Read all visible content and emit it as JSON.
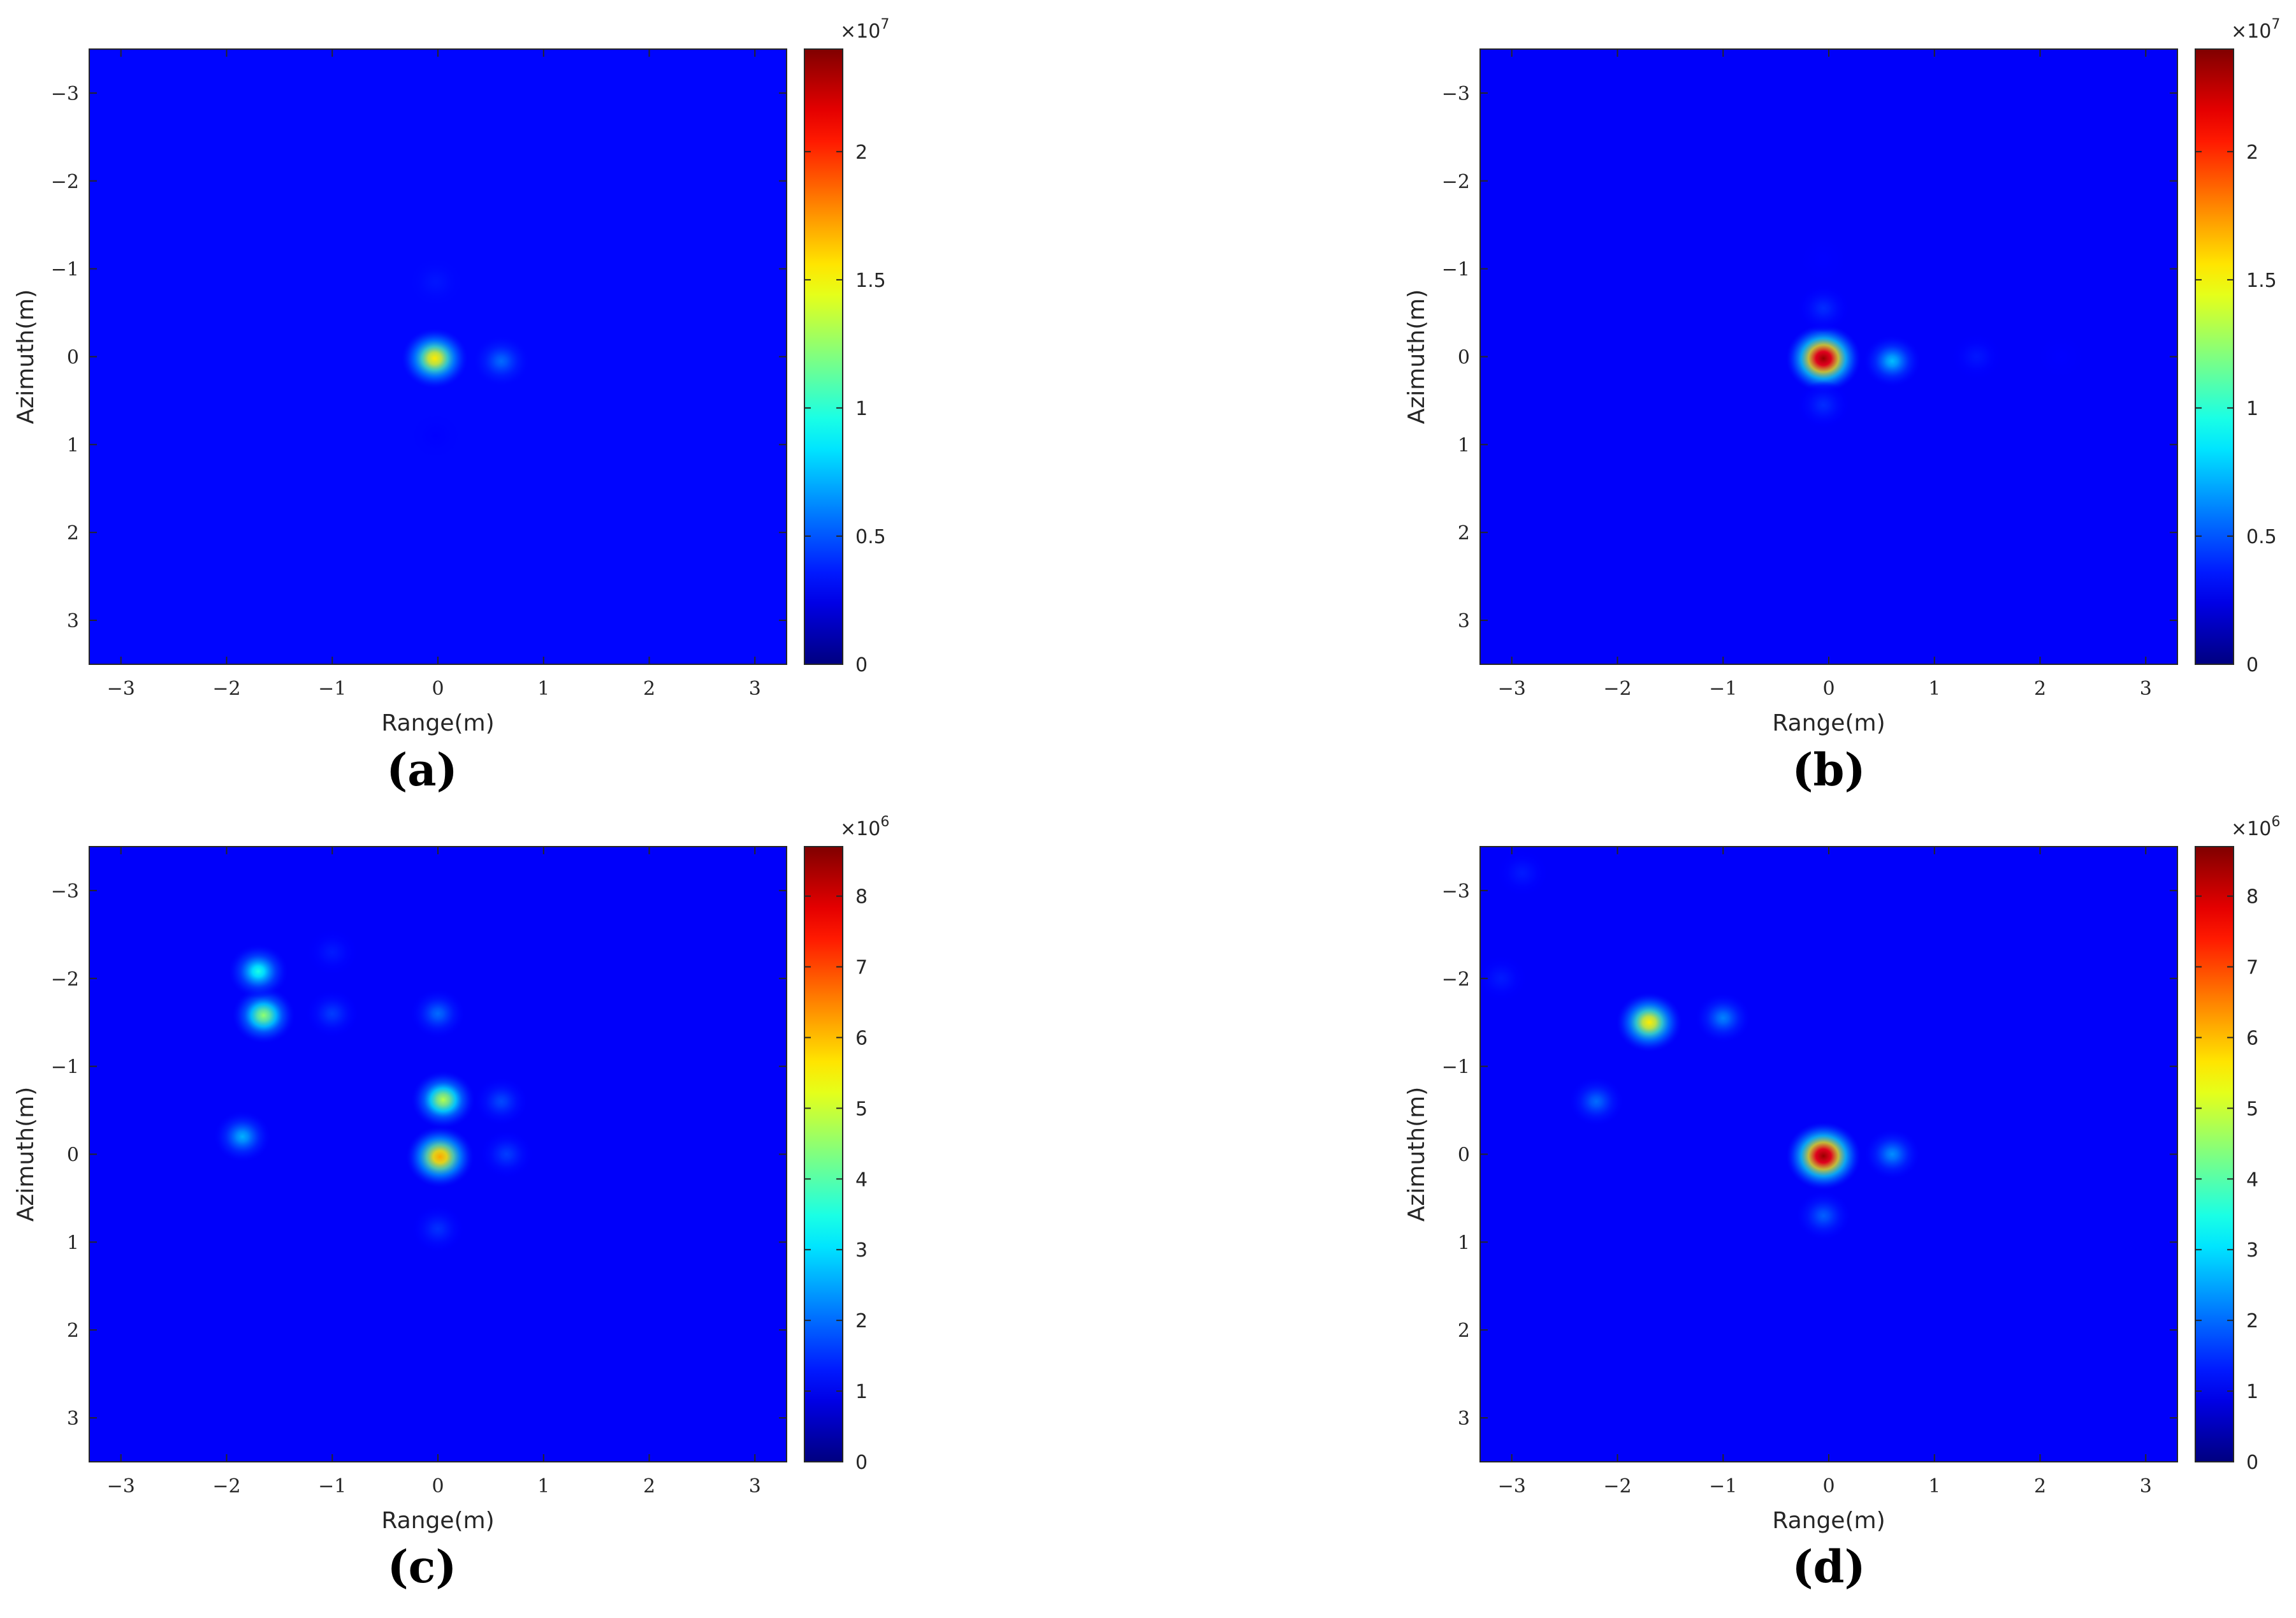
{
  "chart_data": [
    {
      "type": "heatmap",
      "caption": "(a)",
      "xlabel": "Range(m)",
      "ylabel": "Azimuth(m)",
      "xlim": [
        -3.3,
        3.3
      ],
      "ylim": [
        3.5,
        -3.5
      ],
      "xticks": [
        -3,
        -2,
        -1,
        0,
        1,
        2,
        3
      ],
      "yticks": [
        -3,
        -2,
        -1,
        0,
        1,
        2,
        3
      ],
      "colormap": "jet",
      "colorbar": {
        "min": 0,
        "max": 2.4,
        "ticks": [
          0,
          0.5,
          1,
          1.5,
          2
        ],
        "tick_labels": [
          "0",
          "0.5",
          "1",
          "1.5",
          "2"
        ],
        "exponent_label": "×10",
        "exponent": "7"
      },
      "background_level": 0.13,
      "peaks": [
        {
          "x": -0.03,
          "y": 0.02,
          "value": 1.55
        },
        {
          "x": 0.6,
          "y": 0.05,
          "value": 0.55
        },
        {
          "x": -0.02,
          "y": -0.85,
          "value": 0.35
        },
        {
          "x": -0.02,
          "y": 0.9,
          "value": 0.3
        }
      ]
    },
    {
      "type": "heatmap",
      "caption": "(b)",
      "xlabel": "Range(m)",
      "ylabel": "Azimuth(m)",
      "xlim": [
        -3.3,
        3.3
      ],
      "ylim": [
        3.5,
        -3.5
      ],
      "xticks": [
        -3,
        -2,
        -1,
        0,
        1,
        2,
        3
      ],
      "yticks": [
        -3,
        -2,
        -1,
        0,
        1,
        2,
        3
      ],
      "colormap": "jet",
      "colorbar": {
        "min": 0,
        "max": 2.4,
        "ticks": [
          0,
          0.5,
          1,
          1.5,
          2
        ],
        "tick_labels": [
          "0",
          "0.5",
          "1",
          "1.5",
          "2"
        ],
        "exponent_label": "×10",
        "exponent": "7"
      },
      "background_level": 0.12,
      "peaks": [
        {
          "x": -0.05,
          "y": 0.02,
          "value": 2.35
        },
        {
          "x": 0.6,
          "y": 0.05,
          "value": 0.75
        },
        {
          "x": 1.4,
          "y": 0.0,
          "value": 0.35
        },
        {
          "x": 2.2,
          "y": 0.0,
          "value": 0.3
        },
        {
          "x": -0.05,
          "y": -0.55,
          "value": 0.4
        },
        {
          "x": -0.05,
          "y": 0.55,
          "value": 0.4
        },
        {
          "x": -0.05,
          "y": -1.1,
          "value": 0.3
        }
      ]
    },
    {
      "type": "heatmap",
      "caption": "(c)",
      "xlabel": "Range(m)",
      "ylabel": "Azimuth(m)",
      "xlim": [
        -3.3,
        3.3
      ],
      "ylim": [
        3.5,
        -3.5
      ],
      "xticks": [
        -3,
        -2,
        -1,
        0,
        1,
        2,
        3
      ],
      "yticks": [
        -3,
        -2,
        -1,
        0,
        1,
        2,
        3
      ],
      "colormap": "jet",
      "colorbar": {
        "min": 0,
        "max": 8.7,
        "ticks": [
          0,
          1,
          2,
          3,
          4,
          5,
          6,
          7,
          8
        ],
        "tick_labels": [
          "0",
          "1",
          "2",
          "3",
          "4",
          "5",
          "6",
          "7",
          "8"
        ],
        "exponent_label": "×10",
        "exponent": "6"
      },
      "background_level": 0.12,
      "peaks": [
        {
          "x": 0.02,
          "y": 0.03,
          "value": 6.2
        },
        {
          "x": 0.05,
          "y": -0.62,
          "value": 4.8
        },
        {
          "x": -1.65,
          "y": -1.58,
          "value": 4.5
        },
        {
          "x": -1.7,
          "y": -2.08,
          "value": 3.5
        },
        {
          "x": -1.85,
          "y": -0.2,
          "value": 2.6
        },
        {
          "x": 0.6,
          "y": -0.6,
          "value": 1.7
        },
        {
          "x": 0.65,
          "y": 0.0,
          "value": 1.6
        },
        {
          "x": -1.0,
          "y": -1.6,
          "value": 1.6
        },
        {
          "x": -1.0,
          "y": -2.3,
          "value": 1.3
        },
        {
          "x": 0.0,
          "y": -1.6,
          "value": 2.0
        },
        {
          "x": 0.0,
          "y": 0.85,
          "value": 1.5
        }
      ]
    },
    {
      "type": "heatmap",
      "caption": "(d)",
      "xlabel": "Range(m)",
      "ylabel": "Azimuth(m)",
      "xlim": [
        -3.3,
        3.3
      ],
      "ylim": [
        3.5,
        -3.5
      ],
      "xticks": [
        -3,
        -2,
        -1,
        0,
        1,
        2,
        3
      ],
      "yticks": [
        -3,
        -2,
        -1,
        0,
        1,
        2,
        3
      ],
      "colormap": "jet",
      "colorbar": {
        "min": 0,
        "max": 8.7,
        "ticks": [
          0,
          1,
          2,
          3,
          4,
          5,
          6,
          7,
          8
        ],
        "tick_labels": [
          "0",
          "1",
          "2",
          "3",
          "4",
          "5",
          "6",
          "7",
          "8"
        ],
        "exponent_label": "×10",
        "exponent": "6"
      },
      "background_level": 0.12,
      "peaks": [
        {
          "x": -0.05,
          "y": 0.02,
          "value": 8.5
        },
        {
          "x": -1.7,
          "y": -1.5,
          "value": 5.6
        },
        {
          "x": 0.6,
          "y": 0.0,
          "value": 2.3
        },
        {
          "x": -1.0,
          "y": -1.55,
          "value": 2.2
        },
        {
          "x": -2.2,
          "y": -0.6,
          "value": 2.0
        },
        {
          "x": -0.05,
          "y": 0.7,
          "value": 1.9
        },
        {
          "x": -2.9,
          "y": -3.2,
          "value": 1.3
        },
        {
          "x": -3.1,
          "y": -2.0,
          "value": 1.3
        }
      ]
    }
  ]
}
